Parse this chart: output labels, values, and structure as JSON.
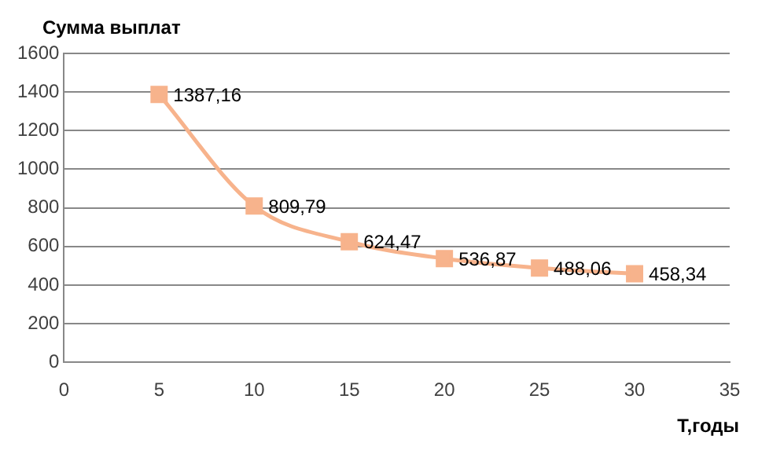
{
  "chart_data": {
    "type": "line",
    "ylabel": "Сумма выплат",
    "xlabel": "Т,годы",
    "x": [
      5,
      10,
      15,
      20,
      25,
      30
    ],
    "series": [
      {
        "color": "#f7b38c",
        "values": [
          1387.16,
          809.79,
          624.47,
          536.87,
          488.06,
          458.34
        ],
        "value_labels": [
          "1387,16",
          "809,79",
          "624,47",
          "536,87",
          "488,06",
          "458,34"
        ]
      }
    ],
    "xlim": [
      0,
      35
    ],
    "xticks": [
      0,
      5,
      10,
      15,
      20,
      25,
      30,
      35
    ],
    "ylim": [
      0,
      1600
    ],
    "yticks": [
      0,
      200,
      400,
      600,
      800,
      1000,
      1200,
      1400,
      1600
    ],
    "grid": "y",
    "marker": "square",
    "line_style": "solid",
    "legend": false
  }
}
